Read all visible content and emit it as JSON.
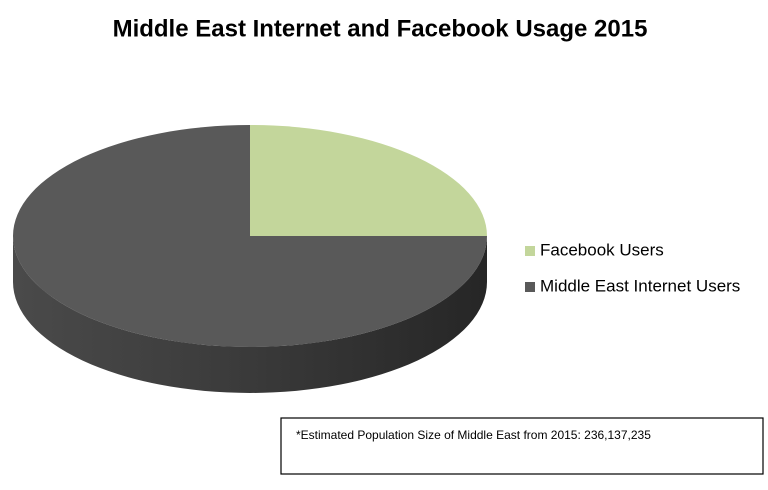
{
  "chart_data": {
    "type": "pie",
    "title": "Middle East Internet and Facebook Usage 2015",
    "series": [
      {
        "name": "Facebook Users",
        "color": "#c3d69b",
        "values": [
          25
        ]
      },
      {
        "name": "Middle East Internet Users",
        "color": "#595959",
        "values": [
          75
        ]
      }
    ],
    "legend": "right",
    "footnote": "*Estimated Population Size of Middle East from 2015: 236,137,235"
  }
}
